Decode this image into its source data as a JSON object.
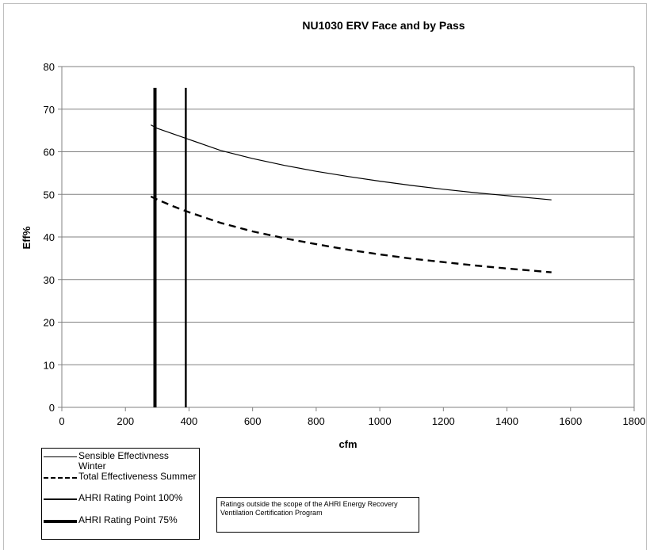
{
  "chart_data": {
    "type": "line",
    "title": "NU1030 ERV Face and by Pass",
    "xlabel": "cfm",
    "ylabel": "Eff%",
    "xlim": [
      0,
      1800
    ],
    "ylim": [
      0,
      80
    ],
    "xticks": [
      0,
      200,
      400,
      600,
      800,
      1000,
      1200,
      1400,
      1600,
      1800
    ],
    "yticks": [
      0,
      10,
      20,
      30,
      40,
      50,
      60,
      70,
      80
    ],
    "grid": "horizontal",
    "legend_position": "bottom-left",
    "series": [
      {
        "name": "Sensible Effectivness Winter",
        "style": "solid-thin",
        "color": "#000000",
        "x": [
          280,
          300,
          350,
          400,
          500,
          600,
          700,
          800,
          900,
          1000,
          1100,
          1200,
          1300,
          1400,
          1540
        ],
        "y": [
          66.3,
          65.5,
          64.2,
          62.9,
          60.3,
          58.4,
          56.8,
          55.4,
          54.2,
          53.1,
          52.1,
          51.2,
          50.4,
          49.7,
          48.7
        ]
      },
      {
        "name": "Total Effectiveness Summer",
        "style": "dashed",
        "color": "#000000",
        "x": [
          280,
          300,
          350,
          400,
          500,
          600,
          700,
          800,
          900,
          1000,
          1100,
          1200,
          1300,
          1400,
          1540
        ],
        "y": [
          49.5,
          48.8,
          47.2,
          45.8,
          43.3,
          41.3,
          39.7,
          38.3,
          37.0,
          35.9,
          34.9,
          34.1,
          33.3,
          32.6,
          31.7
        ]
      },
      {
        "name": "AHRI Rating Point 100%",
        "style": "solid-medium",
        "color": "#000000",
        "x": [
          390,
          390
        ],
        "y": [
          0,
          75
        ]
      },
      {
        "name": "AHRI Rating Point 75%",
        "style": "solid-thick",
        "color": "#000000",
        "x": [
          293,
          293
        ],
        "y": [
          0,
          75
        ]
      }
    ],
    "annotations": [
      "Ratings outside the scope of the AHRI Energy Recovery Ventilation Certification Program"
    ]
  },
  "legend": {
    "items": [
      {
        "label": "Sensible Effectivness Winter",
        "style": "solid-thin"
      },
      {
        "label": "Total Effectiveness Summer",
        "style": "dashed"
      },
      {
        "label": "AHRI Rating Point 100%",
        "style": "solid-medium"
      },
      {
        "label": "AHRI Rating Point 75%",
        "style": "solid-thick"
      }
    ]
  },
  "note": {
    "text": "Ratings outside the scope of the AHRI Energy Recovery Ventilation Certification Program"
  }
}
